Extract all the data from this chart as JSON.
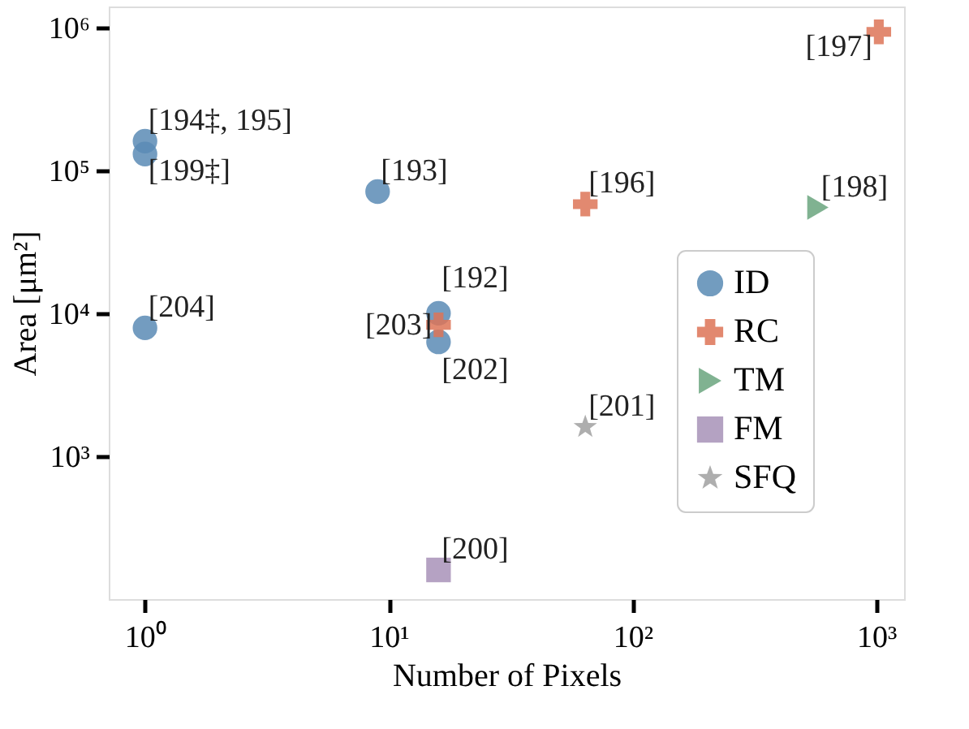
{
  "chart_data": {
    "type": "scatter",
    "xlabel": "Number of Pixels",
    "ylabel": "Area [μm²]",
    "log": "xy",
    "grid": false,
    "legend": "right",
    "xlim": [
      0.71,
      1300
    ],
    "ylim": [
      100,
      1400000
    ],
    "xticks": [
      {
        "value": 1,
        "label": "10⁰"
      },
      {
        "value": 10,
        "label": "10¹"
      },
      {
        "value": 100,
        "label": "10²"
      },
      {
        "value": 1000,
        "label": "10³"
      }
    ],
    "yticks": [
      {
        "value": 1000,
        "label": "10³"
      },
      {
        "value": 10000,
        "label": "10⁴"
      },
      {
        "value": 100000,
        "label": "10⁵"
      },
      {
        "value": 1000000,
        "label": "10⁶"
      }
    ],
    "series": [
      {
        "name": "ID",
        "color": "#5a8bb5",
        "marker": "circle",
        "x": [
          1,
          1,
          9,
          1,
          16,
          16
        ],
        "values": [
          160000,
          130000,
          71000,
          7900,
          10000,
          6300
        ]
      },
      {
        "name": "RC",
        "color": "#dd7457",
        "marker": "cross",
        "x": [
          16,
          64,
          1024
        ],
        "values": [
          8300,
          58000,
          930000
        ]
      },
      {
        "name": "TM",
        "color": "#6aa57e",
        "marker": "triangle",
        "x": [
          576
        ],
        "values": [
          55000
        ]
      },
      {
        "name": "FM",
        "color": "#a892b8",
        "marker": "square",
        "x": [
          16
        ],
        "values": [
          160
        ]
      },
      {
        "name": "SFQ",
        "color": "#a0a0a0",
        "marker": "star",
        "x": [
          64
        ],
        "values": [
          1600
        ]
      }
    ],
    "annotations": [
      {
        "text": "[194‡, 195]",
        "x": 1,
        "y": 160000
      },
      {
        "text": "[199‡]",
        "x": 1,
        "y": 130000
      },
      {
        "text": "[193]",
        "x": 9,
        "y": 71000
      },
      {
        "text": "[204]",
        "x": 1,
        "y": 7900
      },
      {
        "text": "[192]",
        "x": 16,
        "y": 10000
      },
      {
        "text": "[203]",
        "x": 16,
        "y": 8300
      },
      {
        "text": "[202]",
        "x": 16,
        "y": 6300
      },
      {
        "text": "[196]",
        "x": 64,
        "y": 58000
      },
      {
        "text": "[197]",
        "x": 1024,
        "y": 930000
      },
      {
        "text": "[198]",
        "x": 576,
        "y": 55000
      },
      {
        "text": "[201]",
        "x": 64,
        "y": 1600
      },
      {
        "text": "[200]",
        "x": 16,
        "y": 160
      }
    ]
  }
}
